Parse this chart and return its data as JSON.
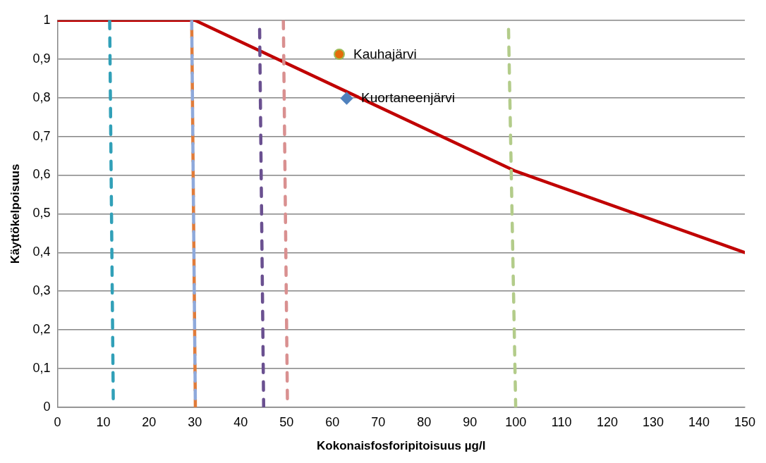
{
  "chart_data": {
    "type": "line",
    "xlabel": "Kokonaisfosforipitoisuus µg/l",
    "ylabel": "Käyttökelpoisuus",
    "xlim": [
      0,
      150
    ],
    "xticks": [
      0,
      10,
      20,
      30,
      40,
      50,
      60,
      70,
      80,
      90,
      100,
      110,
      120,
      130,
      140,
      150
    ],
    "ylim": [
      0,
      1
    ],
    "yticks": [
      0,
      {
        "value": 0.1,
        "label": "0,1"
      },
      {
        "value": 0.2,
        "label": "0,2"
      },
      {
        "value": 0.3,
        "label": "0,3"
      },
      {
        "value": 0.4,
        "label": "0,4"
      },
      {
        "value": 0.5,
        "label": "0,5"
      },
      {
        "value": 0.6,
        "label": "0,6"
      },
      {
        "value": 0.7,
        "label": "0,7"
      },
      {
        "value": 0.8,
        "label": "0,8"
      },
      {
        "value": 0.9,
        "label": "0,9"
      },
      1
    ],
    "grid": "y",
    "legend": "top",
    "marker": "none",
    "series": [
      {
        "type": "line",
        "color": "#c00000",
        "line_style": "solid",
        "x": [
          0,
          30,
          100,
          150
        ],
        "values": [
          1,
          1,
          0.61,
          0.4
        ]
      },
      {
        "type": "line",
        "color": "#31a0b8",
        "line_style": "dashed",
        "x": [
          11.4,
          12.2
        ],
        "values": [
          1,
          0
        ]
      },
      {
        "type": "line",
        "color": "#e07b39",
        "line_style": "dashed",
        "x": [
          29.3,
          30.1
        ],
        "values": [
          1,
          0
        ]
      },
      {
        "type": "line",
        "color": "#8ea9db",
        "line_style": "dashed",
        "x": [
          29.3,
          30.1
        ],
        "values": [
          1,
          0
        ]
      },
      {
        "type": "line",
        "color": "#6a5090",
        "line_style": "dashed",
        "x": [
          44.1,
          45
        ],
        "values": [
          1,
          0
        ]
      },
      {
        "type": "line",
        "color": "#d99090",
        "line_style": "dashed",
        "x": [
          49.3,
          50.2
        ],
        "values": [
          1,
          0
        ]
      },
      {
        "type": "line",
        "color": "#b3cc8a",
        "line_style": "dashed",
        "x": [
          98.4,
          100
        ],
        "values": [
          1,
          0
        ]
      },
      {
        "type": "scatter",
        "name": "Kauhajärvi",
        "color": "#e46c0a",
        "marker": "circle"
      },
      {
        "type": "scatter",
        "name": "Kuortaneenjärvi",
        "color": "#4f81bd",
        "marker": "diamond"
      }
    ]
  }
}
